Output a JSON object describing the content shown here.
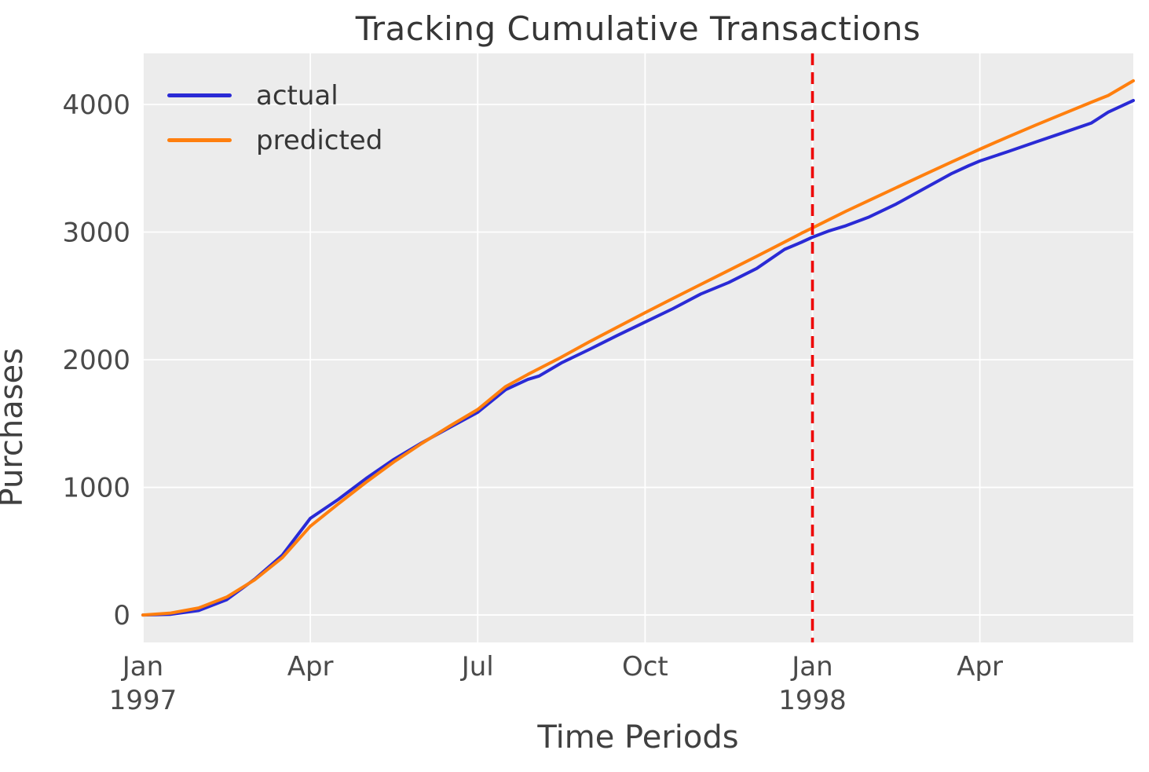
{
  "chart_data": {
    "type": "line",
    "title": "Tracking Cumulative Transactions",
    "xlabel": "Time Periods",
    "ylabel": "Purchases",
    "x_unit": "months since Jan 1997",
    "xlim": [
      0,
      17.75
    ],
    "ylim": [
      -215,
      4400
    ],
    "grid": true,
    "plot_background": "#ececec",
    "grid_color": "#ffffff",
    "tick_color": "#4a4a4a",
    "x_ticks": [
      {
        "pos": 0,
        "label": "Jan",
        "sublabel": "1997"
      },
      {
        "pos": 3,
        "label": "Apr",
        "sublabel": ""
      },
      {
        "pos": 6,
        "label": "Jul",
        "sublabel": ""
      },
      {
        "pos": 9,
        "label": "Oct",
        "sublabel": ""
      },
      {
        "pos": 12,
        "label": "Jan",
        "sublabel": "1998"
      },
      {
        "pos": 15,
        "label": "Apr",
        "sublabel": ""
      }
    ],
    "y_ticks": [
      0,
      1000,
      2000,
      3000,
      4000
    ],
    "vline": {
      "x": 12,
      "color": "#ee0000",
      "style": "dashed",
      "width": 3.6
    },
    "legend": {
      "position": "upper-left",
      "entries": [
        {
          "label": "actual",
          "color": "#2a2ad5"
        },
        {
          "label": "predicted",
          "color": "#ff7f0e"
        }
      ]
    },
    "x": [
      0,
      0.5,
      1,
      1.5,
      2,
      2.5,
      3,
      3.5,
      4,
      4.5,
      5,
      5.5,
      6,
      6.5,
      6.9,
      7.1,
      7.5,
      8,
      8.5,
      9,
      9.5,
      10,
      10.5,
      11,
      11.5,
      11.8,
      12,
      12.3,
      12.6,
      13,
      13.5,
      14,
      14.5,
      14.8,
      15,
      15.5,
      16,
      16.5,
      17,
      17.3,
      17.75
    ],
    "series": [
      {
        "name": "actual",
        "color": "#2a2ad5",
        "values": [
          0,
          5,
          35,
          120,
          280,
          470,
          757,
          905,
          1070,
          1220,
          1350,
          1470,
          1588,
          1765,
          1846,
          1872,
          1975,
          2080,
          2190,
          2295,
          2400,
          2515,
          2605,
          2715,
          2865,
          2920,
          2960,
          3010,
          3050,
          3115,
          3220,
          3340,
          3460,
          3520,
          3557,
          3630,
          3705,
          3780,
          3855,
          3940,
          4031
        ]
      },
      {
        "name": "predicted",
        "color": "#ff7f0e",
        "values": [
          0,
          15,
          55,
          140,
          275,
          450,
          695,
          870,
          1040,
          1200,
          1345,
          1480,
          1610,
          1790,
          1885,
          1930,
          2020,
          2140,
          2255,
          2369,
          2480,
          2590,
          2700,
          2810,
          2922,
          2990,
          3033,
          3098,
          3163,
          3245,
          3348,
          3450,
          3550,
          3610,
          3649,
          3745,
          3838,
          3928,
          4018,
          4070,
          4185
        ]
      }
    ]
  }
}
